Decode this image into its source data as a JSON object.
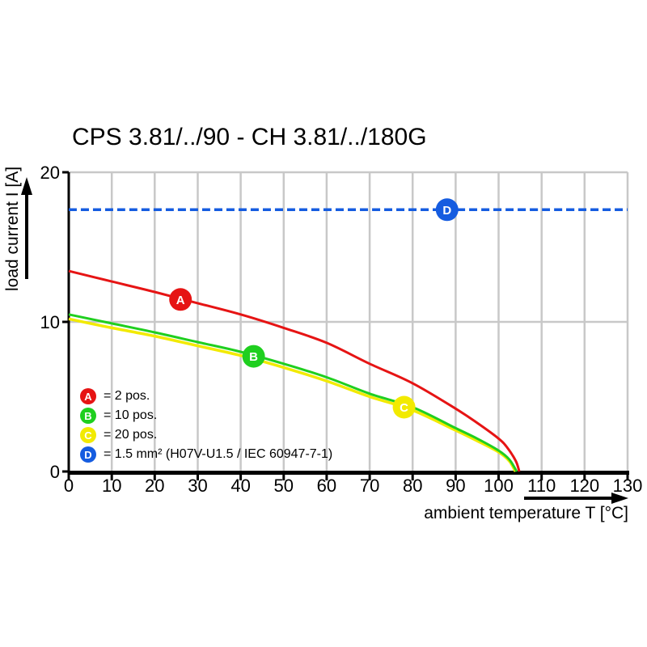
{
  "title": "CPS 3.81/../90 - CH 3.81/../180G",
  "chart_data": {
    "type": "line",
    "title": "CPS 3.81/../90 - CH 3.81/../180G",
    "xlabel": "ambient temperature T [°C]",
    "ylabel": "load current I [A]",
    "xlim": [
      0,
      130
    ],
    "ylim": [
      0,
      20
    ],
    "x_ticks": [
      0,
      10,
      20,
      30,
      40,
      50,
      60,
      70,
      80,
      90,
      100,
      110,
      120,
      130
    ],
    "y_ticks": [
      0,
      10,
      20
    ],
    "grid": "vertical every 10 C; horizontal at 10 A and 20 A",
    "legend_position": "inside bottom-left",
    "colors": {
      "grid": "#c8c8c8",
      "axis": "#000000"
    },
    "series": [
      {
        "name": "A",
        "label": "= 2 pos.",
        "color": "#e61414",
        "width": 3,
        "draw_order": 3,
        "points": [
          [
            0,
            13.4
          ],
          [
            10,
            12.7
          ],
          [
            20,
            12.0
          ],
          [
            30,
            11.25
          ],
          [
            40,
            10.5
          ],
          [
            50,
            9.6
          ],
          [
            60,
            8.6
          ],
          [
            70,
            7.2
          ],
          [
            80,
            5.9
          ],
          [
            90,
            4.2
          ],
          [
            95,
            3.25
          ],
          [
            100,
            2.2
          ],
          [
            102,
            1.6
          ],
          [
            104,
            0.7
          ],
          [
            104.8,
            0
          ]
        ]
      },
      {
        "name": "B",
        "label": "= 10 pos.",
        "color": "#1fcf1f",
        "width": 3,
        "draw_order": 2,
        "points": [
          [
            0,
            10.5
          ],
          [
            10,
            9.9
          ],
          [
            20,
            9.3
          ],
          [
            30,
            8.65
          ],
          [
            40,
            8.0
          ],
          [
            50,
            7.2
          ],
          [
            60,
            6.3
          ],
          [
            70,
            5.2
          ],
          [
            80,
            4.3
          ],
          [
            90,
            2.9
          ],
          [
            95,
            2.2
          ],
          [
            100,
            1.4
          ],
          [
            102.5,
            0.8
          ],
          [
            104.2,
            0
          ]
        ]
      },
      {
        "name": "C",
        "label": "= 20 pos.",
        "color": "#f2ea00",
        "width": 3.5,
        "draw_order": 1,
        "points": [
          [
            0,
            10.2
          ],
          [
            10,
            9.6
          ],
          [
            20,
            9.05
          ],
          [
            30,
            8.4
          ],
          [
            40,
            7.75
          ],
          [
            50,
            6.95
          ],
          [
            60,
            6.05
          ],
          [
            70,
            5.0
          ],
          [
            80,
            4.1
          ],
          [
            90,
            2.75
          ],
          [
            95,
            2.05
          ],
          [
            100,
            1.3
          ],
          [
            102.5,
            0.7
          ],
          [
            103.9,
            0
          ]
        ]
      },
      {
        "name": "D",
        "label": "= 1.5 mm² (H07V-U1.5 / IEC 60947-7-1)",
        "color": "#155ce0",
        "width": 3.5,
        "draw_order": 4,
        "dash": "10 5",
        "points": [
          [
            0,
            17.5
          ],
          [
            130,
            17.5
          ]
        ]
      }
    ],
    "markers": [
      {
        "letter": "A",
        "x": 26,
        "y": 11.5,
        "color": "#e61414"
      },
      {
        "letter": "B",
        "x": 43,
        "y": 7.7,
        "color": "#1fcf1f"
      },
      {
        "letter": "C",
        "x": 78,
        "y": 4.3,
        "color": "#f2ea00"
      },
      {
        "letter": "D",
        "x": 88,
        "y": 17.5,
        "color": "#155ce0"
      }
    ]
  }
}
